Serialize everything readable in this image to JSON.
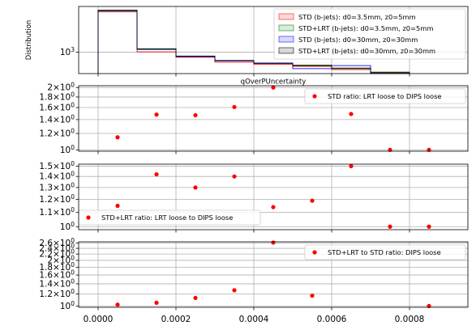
{
  "x_ticks": [
    "0.0000",
    "0.0002",
    "0.0004",
    "0.0006",
    "0.0008"
  ],
  "chart_data": [
    {
      "type": "line",
      "subtype": "step-histogram",
      "ylabel": "Distribution",
      "xlabel": "qOverPUncertainty",
      "yscale": "log",
      "y_tick_label": "10^3",
      "y_tick_value": 1000,
      "ylim": [
        760,
        1800
      ],
      "xlim": [
        -5e-05,
        0.00095
      ],
      "bin_edges": [
        0.0,
        0.0001,
        0.0002,
        0.0003,
        0.0004,
        0.0005,
        0.0006,
        0.0007,
        0.0008
      ],
      "legend_position": "top-right",
      "grid": true,
      "series": [
        {
          "name": "STD (b-jets): d0=3.5mm, z0=5mm",
          "color": "#ff0000",
          "values": [
            1680,
            1005,
            938,
            880,
            855,
            835,
            800,
            765
          ]
        },
        {
          "name": "STD+LRT (b-jets): d0=3.5mm, z0=5mm",
          "color": "#008000",
          "values": [
            1700,
            1035,
            948,
            897,
            870,
            848,
            810,
            775
          ]
        },
        {
          "name": "STD (b-jets): d0=30mm, z0=30mm",
          "color": "#0000ff",
          "values": [
            1710,
            1040,
            945,
            895,
            865,
            810,
            842,
            760
          ]
        },
        {
          "name": "STD+LRT (b-jets): d0=30mm, z0=30mm",
          "color": "#000000",
          "values": [
            1715,
            1045,
            952,
            900,
            870,
            842,
            815,
            770
          ]
        }
      ]
    },
    {
      "type": "scatter",
      "yscale": "log",
      "ylim": [
        0.985,
        2.04
      ],
      "xlim": [
        -5e-05,
        0.00095
      ],
      "y_ticks": [
        1.0,
        1.2,
        1.4,
        1.6,
        1.8,
        2.0
      ],
      "y_tick_labels": [
        "10^0",
        "1.2×10^0",
        "1.4×10^0",
        "1.6×10^0",
        "1.8×10^0",
        "2×10^0"
      ],
      "legend_position": "top-right",
      "grid": true,
      "series": [
        {
          "name": "STD ratio: LRT loose to DIPS loose",
          "color": "#ff0000",
          "x": [
            5e-05,
            0.00015,
            0.00025,
            0.00035,
            0.00045,
            0.00065,
            0.00075,
            0.00085
          ],
          "y": [
            1.15,
            1.48,
            1.47,
            1.61,
            2.0,
            1.49,
            1.0,
            1.0
          ]
        }
      ]
    },
    {
      "type": "scatter",
      "yscale": "log",
      "ylim": [
        0.98,
        1.52
      ],
      "xlim": [
        -5e-05,
        0.00095
      ],
      "y_ticks": [
        1.0,
        1.1,
        1.2,
        1.3,
        1.4,
        1.5
      ],
      "y_tick_labels": [
        "10^0",
        "1.1×10^0",
        "1.2×10^0",
        "1.3×10^0",
        "1.4×10^0",
        "1.5×10^0"
      ],
      "legend_position": "bottom-left",
      "grid": true,
      "series": [
        {
          "name": "STD+LRT ratio: LRT loose to DIPS loose",
          "color": "#ff0000",
          "x": [
            5e-05,
            0.00015,
            0.00025,
            0.00035,
            0.00045,
            0.00055,
            0.00065,
            0.00075,
            0.00085
          ],
          "y": [
            1.15,
            1.42,
            1.3,
            1.4,
            1.14,
            1.19,
            1.5,
            1.0,
            1.0
          ]
        }
      ]
    },
    {
      "type": "scatter",
      "yscale": "log",
      "ylim": [
        0.98,
        2.65
      ],
      "xlim": [
        -5e-05,
        0.00095
      ],
      "y_ticks": [
        1.0,
        1.2,
        1.4,
        1.6,
        1.8,
        2.0,
        2.2,
        2.4,
        2.6
      ],
      "y_tick_labels": [
        "10^0",
        "1.2×10^0",
        "1.4×10^0",
        "1.6×10^0",
        "1.8×10^0",
        "2×10^0",
        "2.2×10^0",
        "2.4×10^0",
        "2.6×10^0"
      ],
      "legend_position": "top-right",
      "grid": true,
      "series": [
        {
          "name": "STD+LRT to STD ratio: DIPS loose",
          "color": "#ff0000",
          "x": [
            5e-05,
            0.00015,
            0.00025,
            0.00035,
            0.00045,
            0.00055,
            0.00085
          ],
          "y": [
            1.02,
            1.05,
            1.13,
            1.27,
            2.62,
            1.17,
            1.0
          ]
        }
      ]
    }
  ]
}
